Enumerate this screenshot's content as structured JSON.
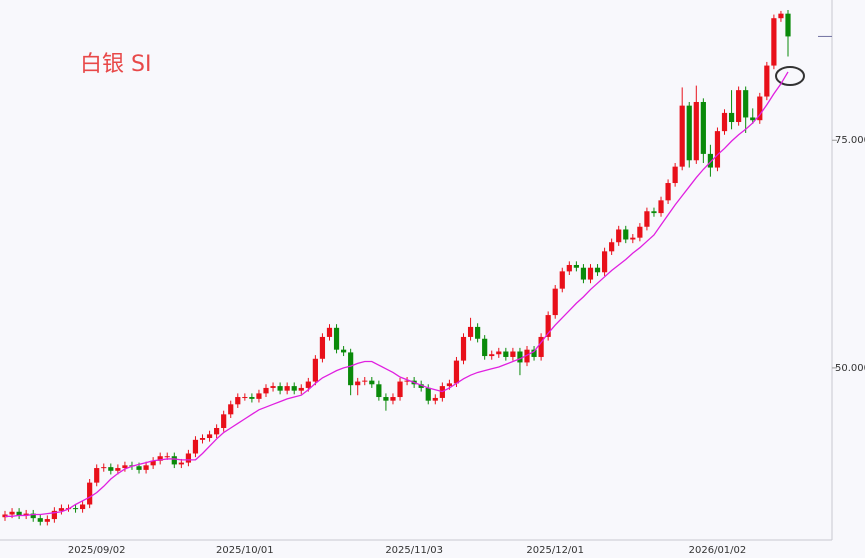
{
  "chart_data": {
    "type": "candlestick",
    "title": "白银 SI",
    "categories": [
      null,
      null,
      null,
      null,
      null,
      null,
      null,
      null,
      null,
      null,
      null,
      null,
      null,
      "2025/09/02",
      null,
      null,
      null,
      null,
      null,
      null,
      null,
      null,
      null,
      null,
      null,
      null,
      null,
      null,
      null,
      null,
      null,
      null,
      null,
      null,
      "2025/10/01",
      null,
      null,
      null,
      null,
      null,
      null,
      null,
      null,
      null,
      null,
      null,
      null,
      null,
      null,
      null,
      null,
      null,
      null,
      null,
      null,
      null,
      null,
      null,
      "2025/11/03",
      null,
      null,
      null,
      null,
      null,
      null,
      null,
      null,
      null,
      null,
      null,
      null,
      null,
      null,
      null,
      null,
      null,
      null,
      null,
      "2025/12/01",
      null,
      null,
      null,
      null,
      null,
      null,
      null,
      null,
      null,
      null,
      null,
      null,
      null,
      null,
      null,
      null,
      null,
      null,
      null,
      null,
      null,
      null,
      "2026/01/02",
      null,
      null,
      null,
      null,
      null,
      null,
      null,
      null,
      null,
      null
    ],
    "open": [
      33.6,
      33.9,
      34.2,
      33.8,
      34.0,
      33.5,
      33.1,
      33.4,
      34.3,
      34.6,
      34.6,
      34.5,
      35.0,
      37.4,
      39.0,
      39.1,
      38.7,
      39.0,
      39.3,
      39.2,
      38.8,
      39.3,
      39.8,
      40.3,
      40.3,
      39.4,
      39.6,
      40.6,
      42.1,
      42.3,
      42.7,
      43.4,
      44.9,
      46.0,
      46.8,
      46.8,
      46.6,
      47.2,
      47.8,
      48.0,
      47.5,
      48.0,
      47.5,
      47.8,
      48.5,
      51.0,
      53.4,
      54.4,
      52.0,
      51.7,
      48.1,
      48.5,
      48.6,
      48.2,
      46.8,
      46.4,
      46.8,
      48.5,
      48.6,
      48.2,
      47.8,
      46.4,
      46.7,
      48.0,
      48.3,
      50.8,
      53.4,
      54.5,
      53.2,
      51.3,
      51.5,
      51.8,
      51.2,
      51.8,
      50.6,
      52.0,
      51.2,
      53.4,
      55.8,
      58.7,
      60.6,
      61.3,
      61.0,
      59.7,
      61.0,
      60.5,
      62.8,
      63.8,
      65.2,
      64.1,
      64.3,
      65.5,
      67.2,
      67.0,
      68.4,
      70.3,
      72.1,
      78.8,
      72.8,
      79.2,
      73.5,
      72.0,
      76.0,
      78.0,
      77.0,
      80.5,
      77.5,
      77.2,
      79.8,
      83.2,
      88.4,
      88.9
    ],
    "high": [
      34.3,
      34.6,
      34.6,
      34.4,
      34.4,
      33.9,
      33.8,
      34.7,
      35.0,
      35.0,
      35.0,
      35.4,
      37.8,
      39.4,
      39.5,
      39.5,
      39.4,
      39.7,
      39.7,
      39.6,
      39.7,
      40.2,
      40.7,
      40.7,
      40.7,
      40.0,
      41.0,
      42.5,
      42.7,
      43.1,
      43.8,
      45.3,
      46.4,
      47.2,
      47.2,
      47.2,
      47.6,
      48.2,
      48.4,
      48.4,
      48.4,
      48.4,
      48.2,
      48.9,
      51.4,
      53.8,
      54.8,
      54.8,
      52.4,
      52.1,
      48.9,
      49.0,
      49.0,
      48.6,
      47.2,
      47.2,
      48.9,
      49.0,
      49.0,
      48.6,
      48.2,
      47.1,
      48.4,
      48.7,
      51.2,
      53.8,
      55.5,
      54.9,
      53.6,
      51.9,
      52.2,
      52.2,
      52.2,
      52.2,
      52.4,
      52.4,
      53.8,
      56.2,
      59.1,
      61.0,
      61.7,
      61.7,
      61.4,
      61.4,
      61.4,
      63.2,
      64.2,
      65.6,
      65.6,
      64.7,
      65.9,
      67.6,
      67.6,
      68.8,
      70.7,
      72.5,
      80.8,
      79.2,
      81.0,
      79.6,
      74.5,
      76.4,
      78.4,
      80.5,
      80.9,
      80.9,
      78.5,
      80.2,
      83.6,
      88.8,
      89.2,
      89.3
    ],
    "low": [
      33.2,
      33.5,
      33.4,
      33.4,
      33.1,
      32.7,
      32.7,
      33.0,
      33.9,
      34.2,
      34.1,
      34.1,
      34.6,
      37.0,
      38.6,
      38.3,
      38.3,
      38.6,
      38.8,
      38.4,
      38.4,
      38.9,
      39.4,
      39.9,
      39.0,
      39.0,
      39.2,
      40.2,
      41.7,
      41.9,
      42.3,
      43.0,
      44.5,
      45.6,
      46.4,
      46.2,
      46.2,
      46.8,
      47.4,
      47.1,
      47.1,
      47.1,
      47.1,
      47.4,
      48.1,
      50.6,
      53.0,
      51.6,
      51.3,
      47.0,
      47.0,
      48.1,
      47.8,
      46.4,
      45.3,
      46.0,
      46.4,
      48.1,
      47.8,
      47.4,
      46.0,
      46.0,
      46.3,
      47.6,
      47.9,
      50.4,
      53.0,
      52.8,
      50.9,
      50.9,
      51.1,
      50.8,
      50.8,
      49.2,
      50.2,
      50.8,
      50.8,
      53.0,
      55.4,
      58.3,
      60.2,
      60.6,
      59.3,
      59.3,
      60.1,
      60.1,
      62.4,
      63.4,
      63.7,
      63.7,
      63.9,
      65.1,
      66.6,
      66.6,
      68.0,
      69.9,
      71.7,
      72.0,
      72.4,
      72.5,
      71.0,
      71.6,
      75.6,
      76.2,
      76.6,
      75.8,
      76.8,
      76.8,
      79.4,
      82.8,
      88.0,
      84.2
    ],
    "close": [
      33.9,
      34.2,
      33.8,
      34.0,
      33.5,
      33.1,
      33.4,
      34.3,
      34.6,
      34.6,
      34.5,
      35.0,
      37.4,
      39.0,
      39.1,
      38.7,
      39.0,
      39.3,
      39.2,
      38.8,
      39.3,
      39.8,
      40.3,
      40.3,
      39.4,
      39.6,
      40.6,
      42.1,
      42.3,
      42.7,
      43.4,
      44.9,
      46.0,
      46.8,
      46.8,
      46.6,
      47.2,
      47.8,
      48.0,
      47.5,
      48.0,
      47.5,
      47.8,
      48.5,
      51.0,
      53.4,
      54.4,
      52.0,
      51.7,
      48.1,
      48.5,
      48.6,
      48.2,
      46.8,
      46.4,
      46.8,
      48.5,
      48.6,
      48.2,
      47.8,
      46.4,
      46.7,
      48.0,
      48.3,
      50.8,
      53.4,
      54.5,
      53.2,
      51.3,
      51.5,
      51.8,
      51.2,
      51.8,
      50.6,
      52.0,
      51.2,
      53.4,
      55.8,
      58.7,
      60.6,
      61.3,
      61.0,
      59.7,
      61.0,
      60.5,
      62.8,
      63.8,
      65.2,
      64.1,
      64.3,
      65.5,
      67.2,
      67.0,
      68.4,
      70.3,
      72.1,
      78.8,
      72.8,
      79.2,
      73.5,
      72.0,
      76.0,
      78.0,
      77.0,
      80.5,
      77.5,
      77.2,
      79.8,
      83.2,
      88.4,
      88.9,
      86.4
    ],
    "up_color": "#e8101a",
    "down_color": "#0a8a0a",
    "lines": [
      {
        "color": "#e020e0",
        "values": [
          33.7,
          33.7,
          33.8,
          33.8,
          33.9,
          33.9,
          34.0,
          34.1,
          34.2,
          34.5,
          35.0,
          35.4,
          35.8,
          36.3,
          37.0,
          37.8,
          38.4,
          38.9,
          39.2,
          39.4,
          39.6,
          39.8,
          39.9,
          40.0,
          40.0,
          39.9,
          39.9,
          39.9,
          40.6,
          41.4,
          42.2,
          42.9,
          43.4,
          43.9,
          44.4,
          44.9,
          45.4,
          45.7,
          46.0,
          46.3,
          46.6,
          46.8,
          47.0,
          47.6,
          48.3,
          48.9,
          49.3,
          49.7,
          50.0,
          50.2,
          50.5,
          50.7,
          50.7,
          50.3,
          49.9,
          49.5,
          49.0,
          48.7,
          48.4,
          48.1,
          47.8,
          47.6,
          47.4,
          47.8,
          48.3,
          48.8,
          49.2,
          49.5,
          49.7,
          49.9,
          50.1,
          50.4,
          50.7,
          51.0,
          51.4,
          51.8,
          52.8,
          53.8,
          54.7,
          55.5,
          56.3,
          57.1,
          57.8,
          58.6,
          59.3,
          60.0,
          60.7,
          61.3,
          61.9,
          62.6,
          63.2,
          63.9,
          64.6,
          65.7,
          66.8,
          67.9,
          68.9,
          69.9,
          70.9,
          71.8,
          72.6,
          73.4,
          74.1,
          74.9,
          75.6,
          76.2,
          76.9,
          77.8,
          78.9,
          80.1,
          81.2,
          82.5
        ]
      }
    ],
    "ylim": [
      31.1,
      90.4
    ],
    "yticks": [
      {
        "value": 50,
        "label": "50.000"
      },
      {
        "value": 75,
        "label": "75.000"
      }
    ]
  }
}
